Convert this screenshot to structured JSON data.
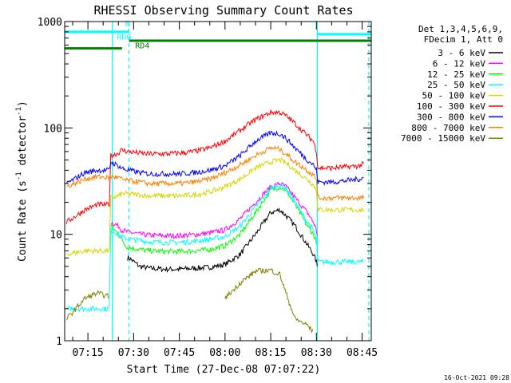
{
  "chart_data": {
    "type": "line",
    "title": "RHESSI Observing Summary Count Rates",
    "xlabel": "Start Time (27-Dec-08 07:07:22)",
    "ylabel_main": "Count Rate (s",
    "ylabel_sup1": "-1",
    "ylabel_mid": " detector",
    "ylabel_sup2": "-1",
    "ylabel_end": ")",
    "yscale": "log",
    "ylim": [
      1,
      1000
    ],
    "yticks": [
      {
        "value": 1,
        "label": "1"
      },
      {
        "value": 10,
        "label": "10"
      },
      {
        "value": 100,
        "label": "100"
      },
      {
        "value": 1000,
        "label": "1000"
      }
    ],
    "xlim_minutes": [
      427.37,
      528
    ],
    "xticks": [
      {
        "minutes": 435,
        "label": "07:15"
      },
      {
        "minutes": 450,
        "label": "07:30"
      },
      {
        "minutes": 465,
        "label": "07:45"
      },
      {
        "minutes": 480,
        "label": "08:00"
      },
      {
        "minutes": 495,
        "label": "08:15"
      },
      {
        "minutes": 510,
        "label": "08:30"
      },
      {
        "minutes": 525,
        "label": "08:45"
      }
    ],
    "legend_header": [
      "Det 1,3,4,5,6,9,",
      "FDecim 1, Att 0"
    ],
    "legend_placement": "right",
    "timestamp": "16-Oct-2021 09:28",
    "x_minutes": [
      428,
      434,
      438,
      442,
      442.5,
      445,
      446,
      448,
      448.5,
      452,
      455,
      460,
      465,
      470,
      475,
      480,
      485,
      490,
      495,
      498,
      500,
      503,
      507,
      509,
      510,
      510.5,
      511,
      515,
      520,
      524,
      525.5
    ],
    "series": [
      {
        "name": "3 - 6 keV",
        "color": "#000000",
        "values": [
          null,
          null,
          null,
          null,
          null,
          null,
          null,
          6.0,
          6.0,
          5.0,
          4.8,
          4.7,
          4.7,
          4.8,
          4.9,
          5.2,
          6.5,
          10,
          16,
          17,
          15,
          12,
          8,
          6.5,
          5.5,
          4.5,
          null,
          null,
          null,
          null,
          null
        ]
      },
      {
        "name": "6 - 12 keV",
        "color": "#ff00ff",
        "values": [
          null,
          null,
          null,
          null,
          13,
          12,
          11,
          10.5,
          10.5,
          10,
          9.8,
          9.7,
          9.7,
          9.9,
          10.3,
          11,
          14,
          20,
          28,
          30,
          28,
          22,
          16,
          13,
          11,
          9,
          null,
          null,
          null,
          null,
          null
        ]
      },
      {
        "name": "12 - 25 keV",
        "color": "#00ff00",
        "values": [
          null,
          null,
          null,
          null,
          12,
          10,
          9,
          7.5,
          7.5,
          7.2,
          7.0,
          6.9,
          6.9,
          7.0,
          7.2,
          7.8,
          10,
          16,
          26,
          28,
          26,
          19,
          12,
          10,
          8.5,
          7,
          null,
          null,
          null,
          null,
          null
        ]
      },
      {
        "name": "25 - 50 keV",
        "color": "#00ffff",
        "values": [
          2.0,
          2.0,
          2.0,
          2.0,
          11,
          10,
          9.5,
          9.0,
          9.0,
          8.8,
          8.5,
          8.4,
          8.4,
          8.6,
          9.0,
          9.5,
          12,
          18,
          27,
          29,
          27,
          20,
          13,
          11,
          9,
          5.5,
          5.5,
          5.5,
          5.5,
          5.5,
          5.5
        ]
      },
      {
        "name": "50 - 100 keV",
        "color": "#d7d700",
        "values": [
          6.5,
          7.0,
          7.0,
          7.0,
          22,
          23,
          24,
          24,
          24,
          23.5,
          23,
          23,
          23,
          23.5,
          25,
          28,
          33,
          42,
          48,
          50,
          47,
          40,
          33,
          29,
          26,
          17,
          17,
          17,
          17,
          17,
          17
        ]
      },
      {
        "name": "100 - 300 keV",
        "color": "#ff0000",
        "values": [
          13,
          17,
          19,
          19,
          55,
          58,
          62,
          60,
          60,
          58,
          57,
          57,
          58,
          60,
          65,
          75,
          95,
          120,
          140,
          140,
          130,
          110,
          85,
          75,
          60,
          42,
          42,
          42,
          43,
          44,
          46
        ]
      },
      {
        "name": "300 - 800 keV",
        "color": "#0000ff",
        "values": [
          30,
          38,
          40,
          40,
          48,
          44,
          42,
          40,
          40,
          38,
          37,
          37,
          37,
          38,
          40,
          44,
          55,
          75,
          90,
          88,
          80,
          65,
          50,
          45,
          40,
          31,
          31,
          31,
          32,
          33,
          34
        ]
      },
      {
        "name": "800 - 7000 keV",
        "color": "#ff8000",
        "values": [
          28,
          33,
          35,
          34,
          35,
          34,
          33,
          32,
          32,
          31,
          30,
          30,
          30,
          31,
          33,
          38,
          45,
          55,
          65,
          63,
          57,
          48,
          40,
          36,
          33,
          22,
          22,
          22,
          22,
          22,
          22
        ]
      },
      {
        "name": "7000 - 15000 keV",
        "color": "#808000",
        "values": [
          1.6,
          2.5,
          2.8,
          2.6,
          null,
          null,
          null,
          null,
          null,
          null,
          null,
          null,
          null,
          null,
          null,
          2.5,
          3.5,
          4.5,
          4.6,
          4.2,
          2.8,
          1.6,
          1.4,
          1.2,
          null,
          null,
          null,
          null,
          null,
          null,
          null
        ]
      }
    ],
    "annotations": [
      {
        "label": "N",
        "color": "#00ffff",
        "level": 800,
        "x_start": 427.37,
        "x_end": 448.5,
        "label_minutes": 447.2,
        "label_level": 900
      },
      {
        "label": "RD0",
        "color": "#00ffff",
        "level": 720,
        "x_start": null,
        "x_end": null,
        "label_minutes": 444.5,
        "label_level": 680
      },
      {
        "label": "RD4",
        "color": "#008000",
        "level": 560,
        "x_start": 427.37,
        "x_end": 446.2,
        "label_minutes": 450.5,
        "label_level": 560
      },
      {
        "label": "",
        "color": "#008000",
        "level": 660,
        "x_start": 448.5,
        "x_end": 528,
        "label_minutes": null,
        "label_level": null
      },
      {
        "label": "",
        "color": "#00ffff",
        "level": 760,
        "x_start": 510.3,
        "x_end": 528,
        "label_minutes": null,
        "label_level": null
      }
    ],
    "vlines": [
      {
        "minutes": 443.0,
        "color": "#00ffff",
        "style": "solid"
      },
      {
        "minutes": 448.5,
        "color": "#00ffff",
        "style": "dashed"
      },
      {
        "minutes": 510.3,
        "color": "#00ffff",
        "style": "solid"
      },
      {
        "minutes": 527.2,
        "color": "#00ffff",
        "style": "dashed"
      }
    ]
  }
}
